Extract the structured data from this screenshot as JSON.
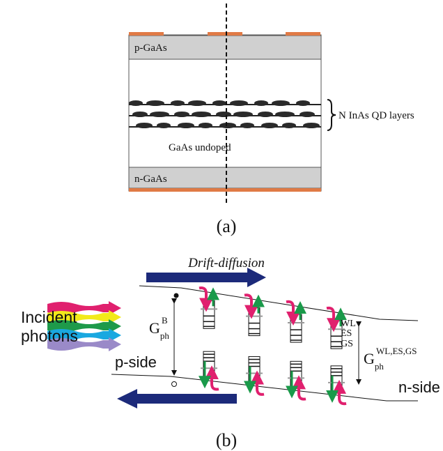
{
  "figure_a": {
    "layers": {
      "p_contact": "p-GaAs",
      "intrinsic": "GaAs undoped",
      "n_contact": "n-GaAs"
    },
    "qd_label": "N InAs QD layers",
    "caption": "(a)"
  },
  "figure_b": {
    "flow_label": "Drift-diffusion",
    "light_label": [
      "Incident",
      "photons"
    ],
    "bulk_generation": {
      "symbol": "G",
      "sub": "ph",
      "sup": "B"
    },
    "p_side": "p-side",
    "n_side": "n-side",
    "levels": [
      "WL",
      "ES",
      "GS"
    ],
    "qd_generation": {
      "symbol": "G",
      "sub": "ph",
      "sup": "WL,ES,GS"
    },
    "caption": "(b)"
  }
}
